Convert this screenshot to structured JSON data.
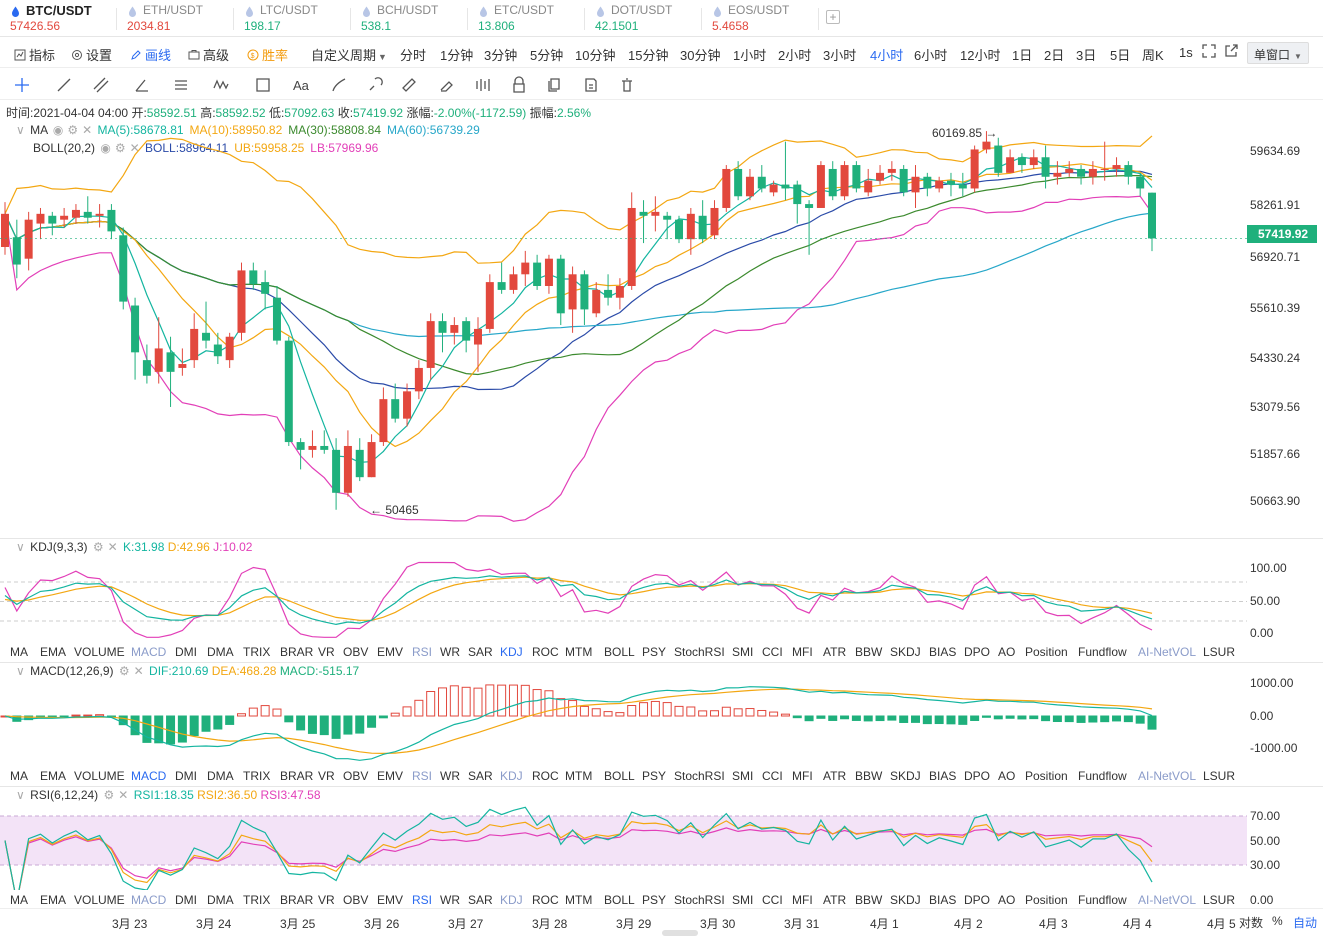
{
  "tabs": [
    {
      "symbol": "BTC/USDT",
      "price": "57426.56",
      "color": "#e2483d"
    },
    {
      "symbol": "ETH/USDT",
      "price": "2034.81",
      "color": "#e2483d"
    },
    {
      "symbol": "LTC/USDT",
      "price": "198.17",
      "color": "#1fb07c"
    },
    {
      "symbol": "BCH/USDT",
      "price": "538.1",
      "color": "#1fb07c"
    },
    {
      "symbol": "ETC/USDT",
      "price": "13.806",
      "color": "#1fb07c"
    },
    {
      "symbol": "DOT/USDT",
      "price": "42.1501",
      "color": "#1fb07c"
    },
    {
      "symbol": "EOS/USDT",
      "price": "5.4658",
      "color": "#e2483d"
    }
  ],
  "toolbar": {
    "indicators": "指标",
    "settings": "设置",
    "draw": "画线",
    "advanced": "高级",
    "winrate": "胜率",
    "custom_period": "自定义周期",
    "periods": [
      "分时",
      "1分钟",
      "3分钟",
      "5分钟",
      "10分钟",
      "15分钟",
      "30分钟",
      "1小时",
      "2小时",
      "3小时",
      "4小时",
      "6小时",
      "12小时",
      "1日",
      "2日",
      "3日",
      "5日",
      "周K"
    ],
    "active_period": "4小时",
    "seconds": "1s",
    "window_mode": "单窗口"
  },
  "info": {
    "time_label": "时间:",
    "time": "2021-04-04 04:00",
    "open_label": "开:",
    "open": "58592.51",
    "high_label": "高:",
    "high": "58592.52",
    "low_label": "低:",
    "low": "57092.63",
    "close_label": "收:",
    "close": "57419.92",
    "change_label": "涨幅:",
    "change": "-2.00%(-1172.59)",
    "amp_label": "振幅:",
    "amp": "2.56%"
  },
  "main": {
    "ma_name": "MA",
    "ma_values": [
      {
        "k": "MA(5):58678.81",
        "c": "#14b5a0"
      },
      {
        "k": "MA(10):58950.82",
        "c": "#f3a712"
      },
      {
        "k": "MA(30):58808.84",
        "c": "#3c8a2e"
      },
      {
        "k": "MA(60):56739.29",
        "c": "#27a7c9"
      }
    ],
    "boll_name": "BOLL(20,2)",
    "boll_values": [
      {
        "k": "BOLL:58964.11",
        "c": "#2b4ba8"
      },
      {
        "k": "UB:59958.25",
        "c": "#f3a712"
      },
      {
        "k": "LB:57969.96",
        "c": "#e23fb8"
      }
    ],
    "price_axis": [
      "59634.69",
      "58261.91",
      "56920.71",
      "55610.39",
      "54330.24",
      "53079.56",
      "51857.66",
      "50663.90"
    ],
    "last_price": "57419.92",
    "high_mark": "60169.85 →",
    "low_mark": "← 50465"
  },
  "kdj": {
    "name": "KDJ(9,3,3)",
    "k": "K:31.98",
    "d": "D:42.96",
    "j": "J:10.02",
    "axis": [
      "100.00",
      "50.00",
      "0.00"
    ]
  },
  "macd": {
    "name": "MACD(12,26,9)",
    "dif": "DIF:210.69",
    "dea": "DEA:468.28",
    "macd": "MACD:-515.17",
    "axis": [
      "1000.00",
      "0.00",
      "-1000.00"
    ]
  },
  "rsi": {
    "name": "RSI(6,12,24)",
    "r1": "RSI1:18.35",
    "r2": "RSI2:36.50",
    "r3": "RSI3:47.58",
    "axis": [
      "70.00",
      "50.00",
      "30.00",
      "0.00"
    ]
  },
  "indicator_list": [
    "MA",
    "EMA",
    "VOLUME",
    "MACD",
    "DMI",
    "DMA",
    "TRIX",
    "BRAR",
    "VR",
    "OBV",
    "EMV",
    "RSI",
    "WR",
    "SAR",
    "KDJ",
    "ROC",
    "MTM",
    "BOLL",
    "PSY",
    "StochRSI",
    "SMI",
    "CCI",
    "MFI",
    "ATR",
    "BBW",
    "SKDJ",
    "BIAS",
    "DPO",
    "AO",
    "Position",
    "Fundflow",
    "AI-NetVOL",
    "LSUR"
  ],
  "dates": [
    "3月 23",
    "3月 24",
    "3月 25",
    "3月 26",
    "3月 27",
    "3月 28",
    "3月 29",
    "3月 30",
    "3月 31",
    "4月 1",
    "4月 2",
    "4月 3",
    "4月 4",
    "4月 5"
  ],
  "bottom": {
    "log": "对数",
    "pct": "%",
    "auto": "自动"
  },
  "colors": {
    "up": "#e2483d",
    "down": "#1fb07c",
    "accent": "#2a6af0",
    "orange": "#f39b0c"
  },
  "chart_data": {
    "type": "candlestick",
    "timeframe": "4小时",
    "candles": [
      {
        "o": 57200,
        "c": 58050,
        "h": 58350,
        "l": 57000
      },
      {
        "o": 57450,
        "c": 56750,
        "h": 57900,
        "l": 56400
      },
      {
        "o": 56900,
        "c": 57900,
        "h": 58100,
        "l": 56600
      },
      {
        "o": 57800,
        "c": 58050,
        "h": 58200,
        "l": 57400
      },
      {
        "o": 58000,
        "c": 57800,
        "h": 58100,
        "l": 57500
      },
      {
        "o": 57900,
        "c": 58000,
        "h": 58200,
        "l": 57700
      },
      {
        "o": 57950,
        "c": 58150,
        "h": 58300,
        "l": 57800
      },
      {
        "o": 58100,
        "c": 57950,
        "h": 58500,
        "l": 57800
      },
      {
        "o": 58000,
        "c": 58050,
        "h": 58300,
        "l": 57700
      },
      {
        "o": 58150,
        "c": 57600,
        "h": 58300,
        "l": 57400
      },
      {
        "o": 57500,
        "c": 55800,
        "h": 57700,
        "l": 55600
      },
      {
        "o": 55700,
        "c": 54500,
        "h": 55900,
        "l": 53800
      },
      {
        "o": 54300,
        "c": 53900,
        "h": 54700,
        "l": 53700
      },
      {
        "o": 54000,
        "c": 54600,
        "h": 55400,
        "l": 53700
      },
      {
        "o": 54500,
        "c": 54000,
        "h": 54900,
        "l": 53100
      },
      {
        "o": 54100,
        "c": 54200,
        "h": 54600,
        "l": 53900
      },
      {
        "o": 54300,
        "c": 55100,
        "h": 55500,
        "l": 54100
      },
      {
        "o": 55000,
        "c": 54800,
        "h": 55800,
        "l": 54600
      },
      {
        "o": 54700,
        "c": 54400,
        "h": 55000,
        "l": 54200
      },
      {
        "o": 54300,
        "c": 54900,
        "h": 55000,
        "l": 54100
      },
      {
        "o": 55000,
        "c": 56600,
        "h": 56800,
        "l": 54800
      },
      {
        "o": 56600,
        "c": 56250,
        "h": 56800,
        "l": 56100
      },
      {
        "o": 56300,
        "c": 56000,
        "h": 56600,
        "l": 55600
      },
      {
        "o": 55900,
        "c": 54800,
        "h": 56200,
        "l": 54700
      },
      {
        "o": 54800,
        "c": 52200,
        "h": 54900,
        "l": 52100
      },
      {
        "o": 52200,
        "c": 52000,
        "h": 52300,
        "l": 51500
      },
      {
        "o": 52000,
        "c": 52100,
        "h": 52500,
        "l": 51800
      },
      {
        "o": 52100,
        "c": 52000,
        "h": 52500,
        "l": 51900
      },
      {
        "o": 52000,
        "c": 50900,
        "h": 52300,
        "l": 50465
      },
      {
        "o": 50900,
        "c": 52100,
        "h": 52500,
        "l": 50800
      },
      {
        "o": 52000,
        "c": 51300,
        "h": 52300,
        "l": 51200
      },
      {
        "o": 51300,
        "c": 52200,
        "h": 52400,
        "l": 51300
      },
      {
        "o": 52200,
        "c": 53300,
        "h": 53600,
        "l": 52100
      },
      {
        "o": 53300,
        "c": 52800,
        "h": 53700,
        "l": 52700
      },
      {
        "o": 52800,
        "c": 53500,
        "h": 53700,
        "l": 52600
      },
      {
        "o": 53500,
        "c": 54100,
        "h": 54300,
        "l": 53300
      },
      {
        "o": 54100,
        "c": 55300,
        "h": 55500,
        "l": 53800
      },
      {
        "o": 55300,
        "c": 55000,
        "h": 55500,
        "l": 54500
      },
      {
        "o": 55000,
        "c": 55200,
        "h": 55400,
        "l": 54700
      },
      {
        "o": 55300,
        "c": 54800,
        "h": 55400,
        "l": 54500
      },
      {
        "o": 54700,
        "c": 55100,
        "h": 55400,
        "l": 54000
      },
      {
        "o": 55100,
        "c": 56300,
        "h": 56500,
        "l": 55000
      },
      {
        "o": 56300,
        "c": 56100,
        "h": 56800,
        "l": 56000
      },
      {
        "o": 56100,
        "c": 56500,
        "h": 56700,
        "l": 56000
      },
      {
        "o": 56500,
        "c": 56800,
        "h": 57100,
        "l": 56200
      },
      {
        "o": 56800,
        "c": 56200,
        "h": 57000,
        "l": 56100
      },
      {
        "o": 56200,
        "c": 56900,
        "h": 57000,
        "l": 56000
      },
      {
        "o": 56900,
        "c": 55500,
        "h": 57000,
        "l": 55200
      },
      {
        "o": 55600,
        "c": 56500,
        "h": 56700,
        "l": 55000
      },
      {
        "o": 56500,
        "c": 55600,
        "h": 56600,
        "l": 55200
      },
      {
        "o": 55500,
        "c": 56100,
        "h": 56300,
        "l": 55400
      },
      {
        "o": 56100,
        "c": 55900,
        "h": 56500,
        "l": 55700
      },
      {
        "o": 55900,
        "c": 56200,
        "h": 56400,
        "l": 55600
      },
      {
        "o": 56200,
        "c": 58200,
        "h": 58600,
        "l": 56100
      },
      {
        "o": 58100,
        "c": 58000,
        "h": 58400,
        "l": 57300
      },
      {
        "o": 58000,
        "c": 58100,
        "h": 58500,
        "l": 57600
      },
      {
        "o": 58000,
        "c": 57900,
        "h": 58100,
        "l": 57400
      },
      {
        "o": 57900,
        "c": 57400,
        "h": 58000,
        "l": 57300
      },
      {
        "o": 57400,
        "c": 58050,
        "h": 58200,
        "l": 57000
      },
      {
        "o": 58000,
        "c": 57400,
        "h": 58400,
        "l": 57300
      },
      {
        "o": 57500,
        "c": 58200,
        "h": 58400,
        "l": 57400
      },
      {
        "o": 58200,
        "c": 59200,
        "h": 59300,
        "l": 58100
      },
      {
        "o": 59200,
        "c": 58500,
        "h": 59400,
        "l": 58400
      },
      {
        "o": 58500,
        "c": 59000,
        "h": 59200,
        "l": 58400
      },
      {
        "o": 59000,
        "c": 58700,
        "h": 59300,
        "l": 58600
      },
      {
        "o": 58600,
        "c": 58800,
        "h": 58900,
        "l": 58500
      },
      {
        "o": 58800,
        "c": 58700,
        "h": 59900,
        "l": 58400
      },
      {
        "o": 58800,
        "c": 58300,
        "h": 58900,
        "l": 57800
      },
      {
        "o": 58300,
        "c": 58200,
        "h": 58400,
        "l": 57000
      },
      {
        "o": 58200,
        "c": 59300,
        "h": 59400,
        "l": 58200
      },
      {
        "o": 59200,
        "c": 58500,
        "h": 59400,
        "l": 58400
      },
      {
        "o": 58500,
        "c": 59300,
        "h": 59400,
        "l": 58400
      },
      {
        "o": 59300,
        "c": 58700,
        "h": 59400,
        "l": 58600
      },
      {
        "o": 58600,
        "c": 58900,
        "h": 59200,
        "l": 58500
      },
      {
        "o": 58900,
        "c": 59100,
        "h": 59300,
        "l": 58800
      },
      {
        "o": 59100,
        "c": 59200,
        "h": 59400,
        "l": 58900
      },
      {
        "o": 59200,
        "c": 58600,
        "h": 59300,
        "l": 58500
      },
      {
        "o": 58600,
        "c": 59000,
        "h": 59300,
        "l": 58200
      },
      {
        "o": 59000,
        "c": 58700,
        "h": 59100,
        "l": 58500
      },
      {
        "o": 58700,
        "c": 58900,
        "h": 59000,
        "l": 58600
      },
      {
        "o": 58900,
        "c": 58800,
        "h": 59100,
        "l": 58500
      },
      {
        "o": 58800,
        "c": 58700,
        "h": 59100,
        "l": 58500
      },
      {
        "o": 58700,
        "c": 59700,
        "h": 59800,
        "l": 58600
      },
      {
        "o": 59700,
        "c": 59900,
        "h": 60169.85,
        "l": 59600
      },
      {
        "o": 59800,
        "c": 59100,
        "h": 60000,
        "l": 59000
      },
      {
        "o": 59100,
        "c": 59500,
        "h": 59700,
        "l": 59100
      },
      {
        "o": 59500,
        "c": 59300,
        "h": 59600,
        "l": 59100
      },
      {
        "o": 59300,
        "c": 59500,
        "h": 59700,
        "l": 59200
      },
      {
        "o": 59500,
        "c": 59000,
        "h": 59800,
        "l": 58700
      },
      {
        "o": 59000,
        "c": 59100,
        "h": 59400,
        "l": 58800
      },
      {
        "o": 59100,
        "c": 59200,
        "h": 59400,
        "l": 59000
      },
      {
        "o": 59200,
        "c": 59000,
        "h": 59300,
        "l": 58800
      },
      {
        "o": 59000,
        "c": 59200,
        "h": 59400,
        "l": 58800
      },
      {
        "o": 59200,
        "c": 59200,
        "h": 59900,
        "l": 58900
      },
      {
        "o": 59200,
        "c": 59300,
        "h": 59500,
        "l": 59000
      },
      {
        "o": 59300,
        "c": 59000,
        "h": 59400,
        "l": 58800
      },
      {
        "o": 59000,
        "c": 58700,
        "h": 59100,
        "l": 58500
      },
      {
        "o": 58592.51,
        "c": 57419.92,
        "h": 58592.52,
        "l": 57092.63
      }
    ]
  }
}
